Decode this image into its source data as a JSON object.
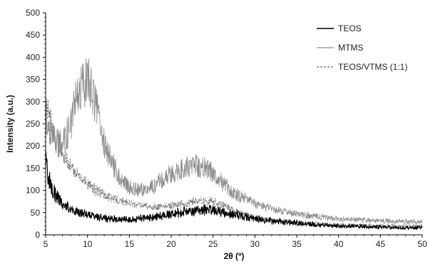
{
  "chart_data": {
    "type": "line",
    "title": "",
    "xlabel": "2θ (º)",
    "ylabel": "Intensity (a.u.)",
    "xlim": [
      5,
      50
    ],
    "ylim": [
      0,
      500
    ],
    "x_ticks": [
      5,
      10,
      15,
      20,
      25,
      30,
      35,
      40,
      45,
      50
    ],
    "y_ticks": [
      0,
      50,
      100,
      150,
      200,
      250,
      300,
      350,
      400,
      450,
      500
    ],
    "grid": false,
    "legend_position": "top-right",
    "series": [
      {
        "name": "TEOS",
        "color": "#000000",
        "style": "solid",
        "x": [
          5,
          5.5,
          6,
          6.5,
          7,
          8,
          9,
          10,
          11,
          12,
          13,
          14,
          15,
          16,
          17,
          18,
          19,
          20,
          21,
          22,
          23,
          24,
          25,
          26,
          27,
          28,
          29,
          30,
          32,
          34,
          36,
          38,
          40,
          42,
          44,
          46,
          48,
          50
        ],
        "y": [
          160,
          120,
          95,
          80,
          70,
          58,
          50,
          46,
          42,
          38,
          36,
          35,
          35,
          36,
          38,
          40,
          43,
          47,
          50,
          53,
          55,
          57,
          56,
          52,
          48,
          45,
          40,
          36,
          32,
          28,
          25,
          22,
          20,
          19,
          18,
          17,
          16,
          16
        ]
      },
      {
        "name": "MTMS",
        "color": "#8c8c8c",
        "style": "solid",
        "x": [
          5,
          5.5,
          6,
          6.5,
          7,
          7.5,
          8,
          8.5,
          9,
          9.5,
          10,
          10.5,
          11,
          11.5,
          12,
          13,
          14,
          15,
          16,
          17,
          18,
          19,
          20,
          21,
          22,
          23,
          24,
          25,
          26,
          27,
          28,
          29,
          30,
          32,
          34,
          36,
          38,
          40,
          42,
          44,
          46,
          48,
          50
        ],
        "y": [
          240,
          225,
          215,
          205,
          210,
          225,
          250,
          290,
          325,
          340,
          345,
          330,
          290,
          245,
          205,
          160,
          125,
          108,
          100,
          103,
          112,
          125,
          138,
          148,
          152,
          155,
          152,
          140,
          120,
          100,
          88,
          78,
          70,
          58,
          50,
          44,
          40,
          36,
          34,
          32,
          31,
          30,
          30
        ]
      },
      {
        "name": "TEOS/VTMS (1:1)",
        "color": "#707070",
        "style": "dashed",
        "x": [
          5,
          5.5,
          6,
          6.5,
          7,
          7.5,
          8,
          9,
          10,
          11,
          12,
          13,
          14,
          15,
          16,
          17,
          18,
          19,
          20,
          21,
          22,
          23,
          24,
          25,
          26,
          27,
          28,
          29,
          30,
          32,
          34,
          36,
          38,
          40,
          42,
          44,
          46,
          48,
          50
        ],
        "y": [
          295,
          260,
          230,
          205,
          185,
          170,
          155,
          130,
          115,
          102,
          90,
          82,
          76,
          70,
          66,
          64,
          63,
          64,
          66,
          68,
          72,
          76,
          77,
          74,
          68,
          60,
          52,
          45,
          40,
          34,
          30,
          27,
          25,
          23,
          22,
          21,
          20,
          20,
          20
        ]
      }
    ]
  }
}
